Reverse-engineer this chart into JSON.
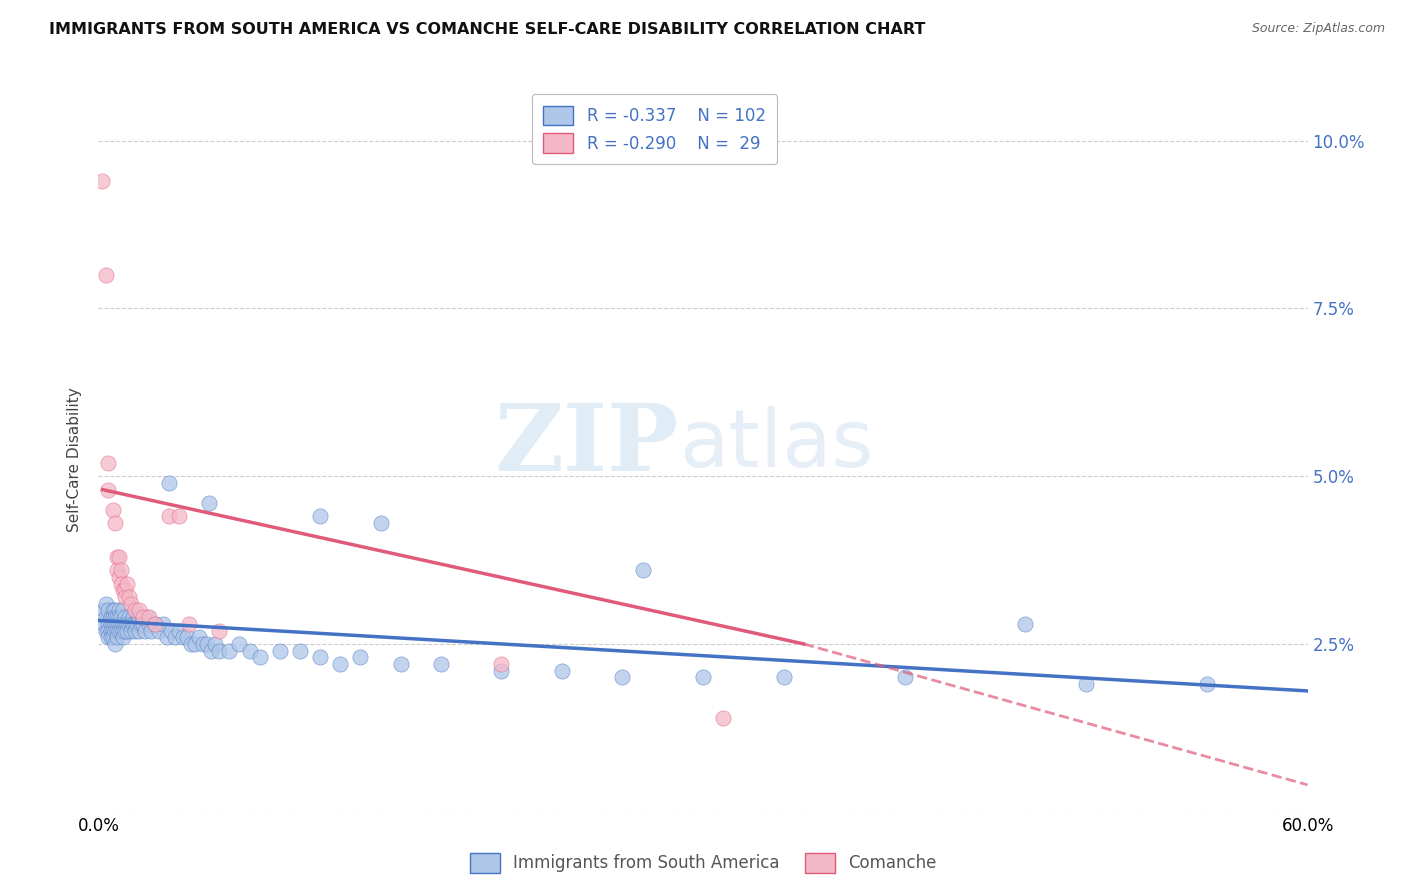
{
  "title": "IMMIGRANTS FROM SOUTH AMERICA VS COMANCHE SELF-CARE DISABILITY CORRELATION CHART",
  "source": "Source: ZipAtlas.com",
  "ylabel": "Self-Care Disability",
  "legend_labels": [
    "Immigrants from South America",
    "Comanche"
  ],
  "r_blue": -0.337,
  "n_blue": 102,
  "r_pink": -0.29,
  "n_pink": 29,
  "xlim": [
    0.0,
    0.6
  ],
  "ylim": [
    0.0,
    0.105
  ],
  "yticks": [
    0.0,
    0.025,
    0.05,
    0.075,
    0.1
  ],
  "ytick_labels": [
    "",
    "2.5%",
    "5.0%",
    "7.5%",
    "10.0%"
  ],
  "xticks": [
    0.0,
    0.1,
    0.2,
    0.3,
    0.4,
    0.5,
    0.6
  ],
  "xtick_labels": [
    "0.0%",
    "",
    "",
    "",
    "",
    "",
    "60.0%"
  ],
  "blue_color": "#aec6e8",
  "pink_color": "#f4b8c8",
  "blue_line_color": "#4472c4",
  "pink_line_color": "#e05a7a",
  "watermark_zip": "ZIP",
  "watermark_atlas": "atlas",
  "blue_points": [
    [
      0.003,
      0.03
    ],
    [
      0.003,
      0.028
    ],
    [
      0.004,
      0.029
    ],
    [
      0.004,
      0.027
    ],
    [
      0.004,
      0.031
    ],
    [
      0.005,
      0.03
    ],
    [
      0.005,
      0.028
    ],
    [
      0.005,
      0.027
    ],
    [
      0.005,
      0.026
    ],
    [
      0.006,
      0.029
    ],
    [
      0.006,
      0.028
    ],
    [
      0.006,
      0.027
    ],
    [
      0.006,
      0.026
    ],
    [
      0.007,
      0.03
    ],
    [
      0.007,
      0.029
    ],
    [
      0.007,
      0.028
    ],
    [
      0.007,
      0.027
    ],
    [
      0.007,
      0.026
    ],
    [
      0.008,
      0.03
    ],
    [
      0.008,
      0.029
    ],
    [
      0.008,
      0.028
    ],
    [
      0.008,
      0.027
    ],
    [
      0.008,
      0.025
    ],
    [
      0.009,
      0.029
    ],
    [
      0.009,
      0.028
    ],
    [
      0.009,
      0.027
    ],
    [
      0.009,
      0.026
    ],
    [
      0.01,
      0.03
    ],
    [
      0.01,
      0.029
    ],
    [
      0.01,
      0.028
    ],
    [
      0.01,
      0.027
    ],
    [
      0.011,
      0.029
    ],
    [
      0.011,
      0.028
    ],
    [
      0.011,
      0.027
    ],
    [
      0.012,
      0.03
    ],
    [
      0.012,
      0.028
    ],
    [
      0.012,
      0.027
    ],
    [
      0.012,
      0.026
    ],
    [
      0.013,
      0.029
    ],
    [
      0.013,
      0.028
    ],
    [
      0.013,
      0.027
    ],
    [
      0.014,
      0.028
    ],
    [
      0.014,
      0.027
    ],
    [
      0.015,
      0.029
    ],
    [
      0.015,
      0.028
    ],
    [
      0.016,
      0.028
    ],
    [
      0.016,
      0.027
    ],
    [
      0.017,
      0.029
    ],
    [
      0.017,
      0.028
    ],
    [
      0.018,
      0.028
    ],
    [
      0.018,
      0.027
    ],
    [
      0.019,
      0.028
    ],
    [
      0.02,
      0.029
    ],
    [
      0.02,
      0.027
    ],
    [
      0.021,
      0.028
    ],
    [
      0.022,
      0.028
    ],
    [
      0.023,
      0.027
    ],
    [
      0.024,
      0.029
    ],
    [
      0.025,
      0.028
    ],
    [
      0.026,
      0.027
    ],
    [
      0.028,
      0.028
    ],
    [
      0.03,
      0.027
    ],
    [
      0.032,
      0.028
    ],
    [
      0.034,
      0.026
    ],
    [
      0.036,
      0.027
    ],
    [
      0.038,
      0.026
    ],
    [
      0.04,
      0.027
    ],
    [
      0.042,
      0.026
    ],
    [
      0.044,
      0.026
    ],
    [
      0.046,
      0.025
    ],
    [
      0.048,
      0.025
    ],
    [
      0.05,
      0.026
    ],
    [
      0.052,
      0.025
    ],
    [
      0.054,
      0.025
    ],
    [
      0.056,
      0.024
    ],
    [
      0.058,
      0.025
    ],
    [
      0.06,
      0.024
    ],
    [
      0.065,
      0.024
    ],
    [
      0.07,
      0.025
    ],
    [
      0.075,
      0.024
    ],
    [
      0.08,
      0.023
    ],
    [
      0.09,
      0.024
    ],
    [
      0.1,
      0.024
    ],
    [
      0.11,
      0.023
    ],
    [
      0.12,
      0.022
    ],
    [
      0.13,
      0.023
    ],
    [
      0.15,
      0.022
    ],
    [
      0.17,
      0.022
    ],
    [
      0.2,
      0.021
    ],
    [
      0.23,
      0.021
    ],
    [
      0.26,
      0.02
    ],
    [
      0.3,
      0.02
    ],
    [
      0.34,
      0.02
    ],
    [
      0.4,
      0.02
    ],
    [
      0.49,
      0.019
    ],
    [
      0.55,
      0.019
    ],
    [
      0.035,
      0.049
    ],
    [
      0.055,
      0.046
    ],
    [
      0.11,
      0.044
    ],
    [
      0.14,
      0.043
    ],
    [
      0.27,
      0.036
    ],
    [
      0.46,
      0.028
    ]
  ],
  "pink_points": [
    [
      0.002,
      0.094
    ],
    [
      0.004,
      0.08
    ],
    [
      0.005,
      0.052
    ],
    [
      0.005,
      0.048
    ],
    [
      0.007,
      0.045
    ],
    [
      0.008,
      0.043
    ],
    [
      0.009,
      0.038
    ],
    [
      0.009,
      0.036
    ],
    [
      0.01,
      0.038
    ],
    [
      0.01,
      0.035
    ],
    [
      0.011,
      0.036
    ],
    [
      0.011,
      0.034
    ],
    [
      0.012,
      0.033
    ],
    [
      0.013,
      0.033
    ],
    [
      0.013,
      0.032
    ],
    [
      0.014,
      0.034
    ],
    [
      0.015,
      0.032
    ],
    [
      0.016,
      0.031
    ],
    [
      0.018,
      0.03
    ],
    [
      0.02,
      0.03
    ],
    [
      0.022,
      0.029
    ],
    [
      0.025,
      0.029
    ],
    [
      0.028,
      0.028
    ],
    [
      0.035,
      0.044
    ],
    [
      0.04,
      0.044
    ],
    [
      0.045,
      0.028
    ],
    [
      0.06,
      0.027
    ],
    [
      0.2,
      0.022
    ],
    [
      0.31,
      0.014
    ]
  ],
  "blue_trend": [
    0.0,
    0.6,
    0.0285,
    0.018
  ],
  "pink_trend_solid": [
    0.002,
    0.35,
    0.048,
    0.025
  ],
  "pink_trend_dashed": [
    0.35,
    0.6,
    0.025,
    0.004
  ]
}
